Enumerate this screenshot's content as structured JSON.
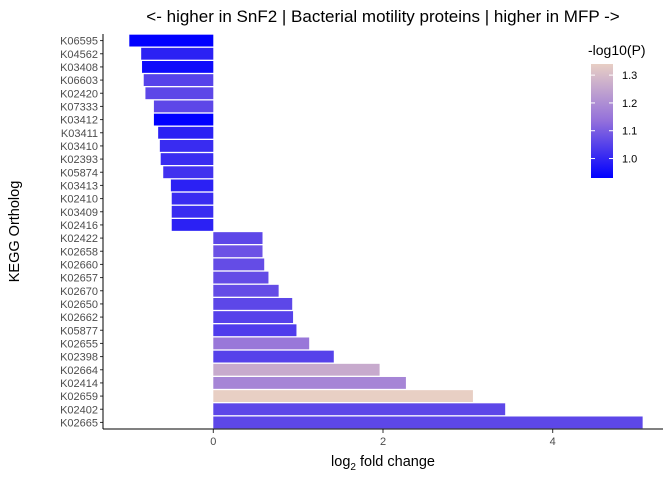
{
  "chart_data": {
    "type": "bar",
    "orientation": "horizontal",
    "title": "<- higher in SnF2 | Bacterial motility proteins | higher in MFP ->",
    "xlabel": {
      "main": "log",
      "subscript": "2",
      "suffix": " fold change"
    },
    "ylabel": "KEGG Ortholog",
    "xlim": [
      -1.3,
      5.3
    ],
    "xticks": [
      0,
      2,
      4
    ],
    "grid": false,
    "legend": {
      "title": "-log10(P)",
      "placement": "top-right",
      "range": [
        0.93,
        1.34
      ],
      "ticks": [
        1.0,
        1.1,
        1.2,
        1.3
      ],
      "low_color": "#0000FF",
      "mid_color": "#9370DB",
      "high_color": "#E8CFC4"
    },
    "categories": [
      "K06595",
      "K04562",
      "K03408",
      "K06603",
      "K02420",
      "K07333",
      "K03412",
      "K03411",
      "K03410",
      "K02393",
      "K05874",
      "K03413",
      "K02410",
      "K03409",
      "K02416",
      "K02422",
      "K02658",
      "K02660",
      "K02657",
      "K02670",
      "K02650",
      "K02662",
      "K05877",
      "K02655",
      "K02398",
      "K02664",
      "K02414",
      "K02659",
      "K02402",
      "K02665"
    ],
    "values": [
      -0.99,
      -0.85,
      -0.84,
      -0.82,
      -0.8,
      -0.7,
      -0.7,
      -0.65,
      -0.63,
      -0.62,
      -0.59,
      -0.5,
      -0.49,
      -0.49,
      -0.49,
      0.58,
      0.58,
      0.6,
      0.65,
      0.77,
      0.93,
      0.94,
      0.98,
      1.13,
      1.42,
      1.96,
      2.27,
      3.06,
      3.44,
      5.06
    ],
    "pvalue_neglog10": [
      0.93,
      0.99,
      0.95,
      1.05,
      1.06,
      1.06,
      0.93,
      0.99,
      1.01,
      1.01,
      1.02,
      0.99,
      1.01,
      1.01,
      0.99,
      1.06,
      1.08,
      1.07,
      1.07,
      1.07,
      1.06,
      1.05,
      1.04,
      1.15,
      1.05,
      1.26,
      1.18,
      1.34,
      1.06,
      1.06
    ]
  }
}
